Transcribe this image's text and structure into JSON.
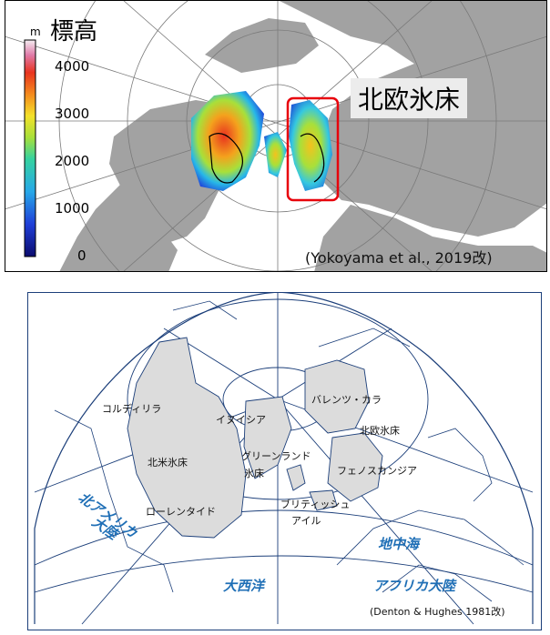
{
  "top_map": {
    "title": "標高",
    "unit": "m",
    "colorbar_ticks": [
      "4000",
      "3000",
      "2000",
      "1000",
      "0"
    ],
    "ice_sheet_label": "北欧氷床",
    "credit": "(Yokoyama et al., 2019改)",
    "colors": {
      "land": "#a0a0a0",
      "ocean": "#ffffff",
      "highlight_box": "#e8000b"
    }
  },
  "bottom_map": {
    "labels": {
      "cordillera": "コルディリラ",
      "innuitian": "イヌイシア",
      "barents_kara": "バレンツ・カラ",
      "scandinavian": "北欧氷床",
      "laurentide_n": "北米氷床",
      "greenland_1": "グリーンランド",
      "greenland_2": "氷床",
      "fennoscandian": "フェノスカンジア",
      "laurentide": "ローレンタイド",
      "british_1": "ブリティッシュ",
      "british_2": "アイル",
      "north_america_1": "北アメリカ",
      "north_america_2": "大陸",
      "mediterranean": "地中海",
      "atlantic": "大西洋",
      "africa": "アフリカ大陸",
      "credit": "(Denton & Hughes 1981改)"
    },
    "colors": {
      "ice": "#dcdcdc",
      "lines": "#1c3f7a",
      "blue_text": "#1f6fb6"
    }
  }
}
